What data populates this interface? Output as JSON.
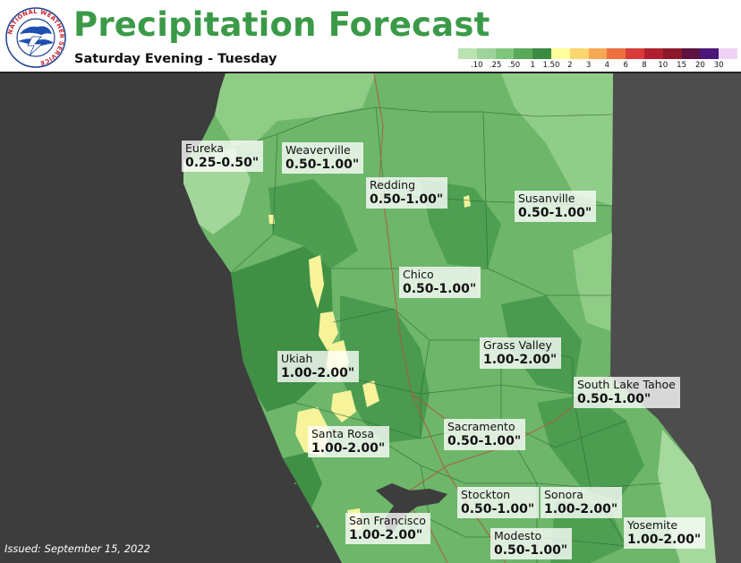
{
  "header": {
    "title": "Precipitation Forecast",
    "subtitle": "Saturday Evening - Tuesday",
    "logo_text": "NATIONAL WEATHER SERVICE",
    "logo_icon": "nws-logo-icon"
  },
  "legend": {
    "colors": [
      "#b9e3b1",
      "#9ed39b",
      "#7fc57d",
      "#5aa85a",
      "#3b8a43",
      "#ffff9e",
      "#fbd56d",
      "#f6a752",
      "#ee7040",
      "#d93b3b",
      "#b01f2e",
      "#8a1a2a",
      "#5e1340",
      "#4b1679",
      "#f0d2f6"
    ],
    "labels": [
      ".10",
      ".25",
      ".50",
      "1",
      "1.50",
      "2",
      "3",
      "4",
      "6",
      "8",
      "10",
      "15",
      "20",
      "30"
    ]
  },
  "locations": [
    {
      "name": "Eureka",
      "amount": "0.25-0.50\""
    },
    {
      "name": "Weaverville",
      "amount": "0.50-1.00\""
    },
    {
      "name": "Redding",
      "amount": "0.50-1.00\""
    },
    {
      "name": "Susanville",
      "amount": "0.50-1.00\""
    },
    {
      "name": "Chico",
      "amount": "0.50-1.00\""
    },
    {
      "name": "Grass Valley",
      "amount": "1.00-2.00\""
    },
    {
      "name": "Ukiah",
      "amount": "1.00-2.00\""
    },
    {
      "name": "South Lake Tahoe",
      "amount": "0.50-1.00\""
    },
    {
      "name": "Santa Rosa",
      "amount": "1.00-2.00\""
    },
    {
      "name": "Sacramento",
      "amount": "0.50-1.00\""
    },
    {
      "name": "Stockton",
      "amount": "0.50-1.00\""
    },
    {
      "name": "Sonora",
      "amount": "1.00-2.00\""
    },
    {
      "name": "San Francisco",
      "amount": "1.00-2.00\""
    },
    {
      "name": "Modesto",
      "amount": "0.50-1.00\""
    },
    {
      "name": "Yosemite",
      "amount": "1.00-2.00\""
    }
  ],
  "footer": {
    "issued": "Issued: September 15, 2022"
  }
}
